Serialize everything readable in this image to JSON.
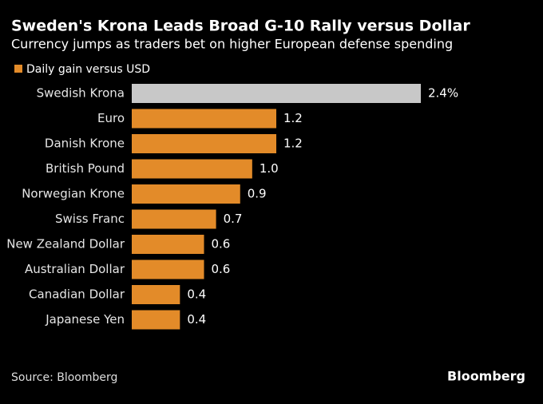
{
  "chart_data": {
    "type": "bar",
    "orientation": "horizontal",
    "title": "Sweden's Krona Leads Broad G-10 Rally versus Dollar",
    "subtitle": "Currency jumps as traders bet on higher European defense spending",
    "categories": [
      "Swedish Krona",
      "Euro",
      "Danish Krone",
      "British Pound",
      "Norwegian Krone",
      "Swiss Franc",
      "New Zealand Dollar",
      "Australian Dollar",
      "Canadian Dollar",
      "Japanese Yen"
    ],
    "series": [
      {
        "name": "Daily gain versus USD",
        "color": "#e38b29",
        "values": [
          2.4,
          1.2,
          1.2,
          1.0,
          0.9,
          0.7,
          0.6,
          0.6,
          0.4,
          0.4
        ],
        "value_labels": [
          "2.4%",
          "1.2",
          "1.2",
          "1.0",
          "0.9",
          "0.7",
          "0.6",
          "0.6",
          "0.4",
          "0.4"
        ],
        "colors": [
          "#c8c8c8",
          "#e38b29",
          "#e38b29",
          "#e38b29",
          "#e38b29",
          "#e38b29",
          "#e38b29",
          "#e38b29",
          "#e38b29",
          "#e38b29"
        ]
      }
    ],
    "source": "Source: Bloomberg",
    "brand": "Bloomberg"
  }
}
